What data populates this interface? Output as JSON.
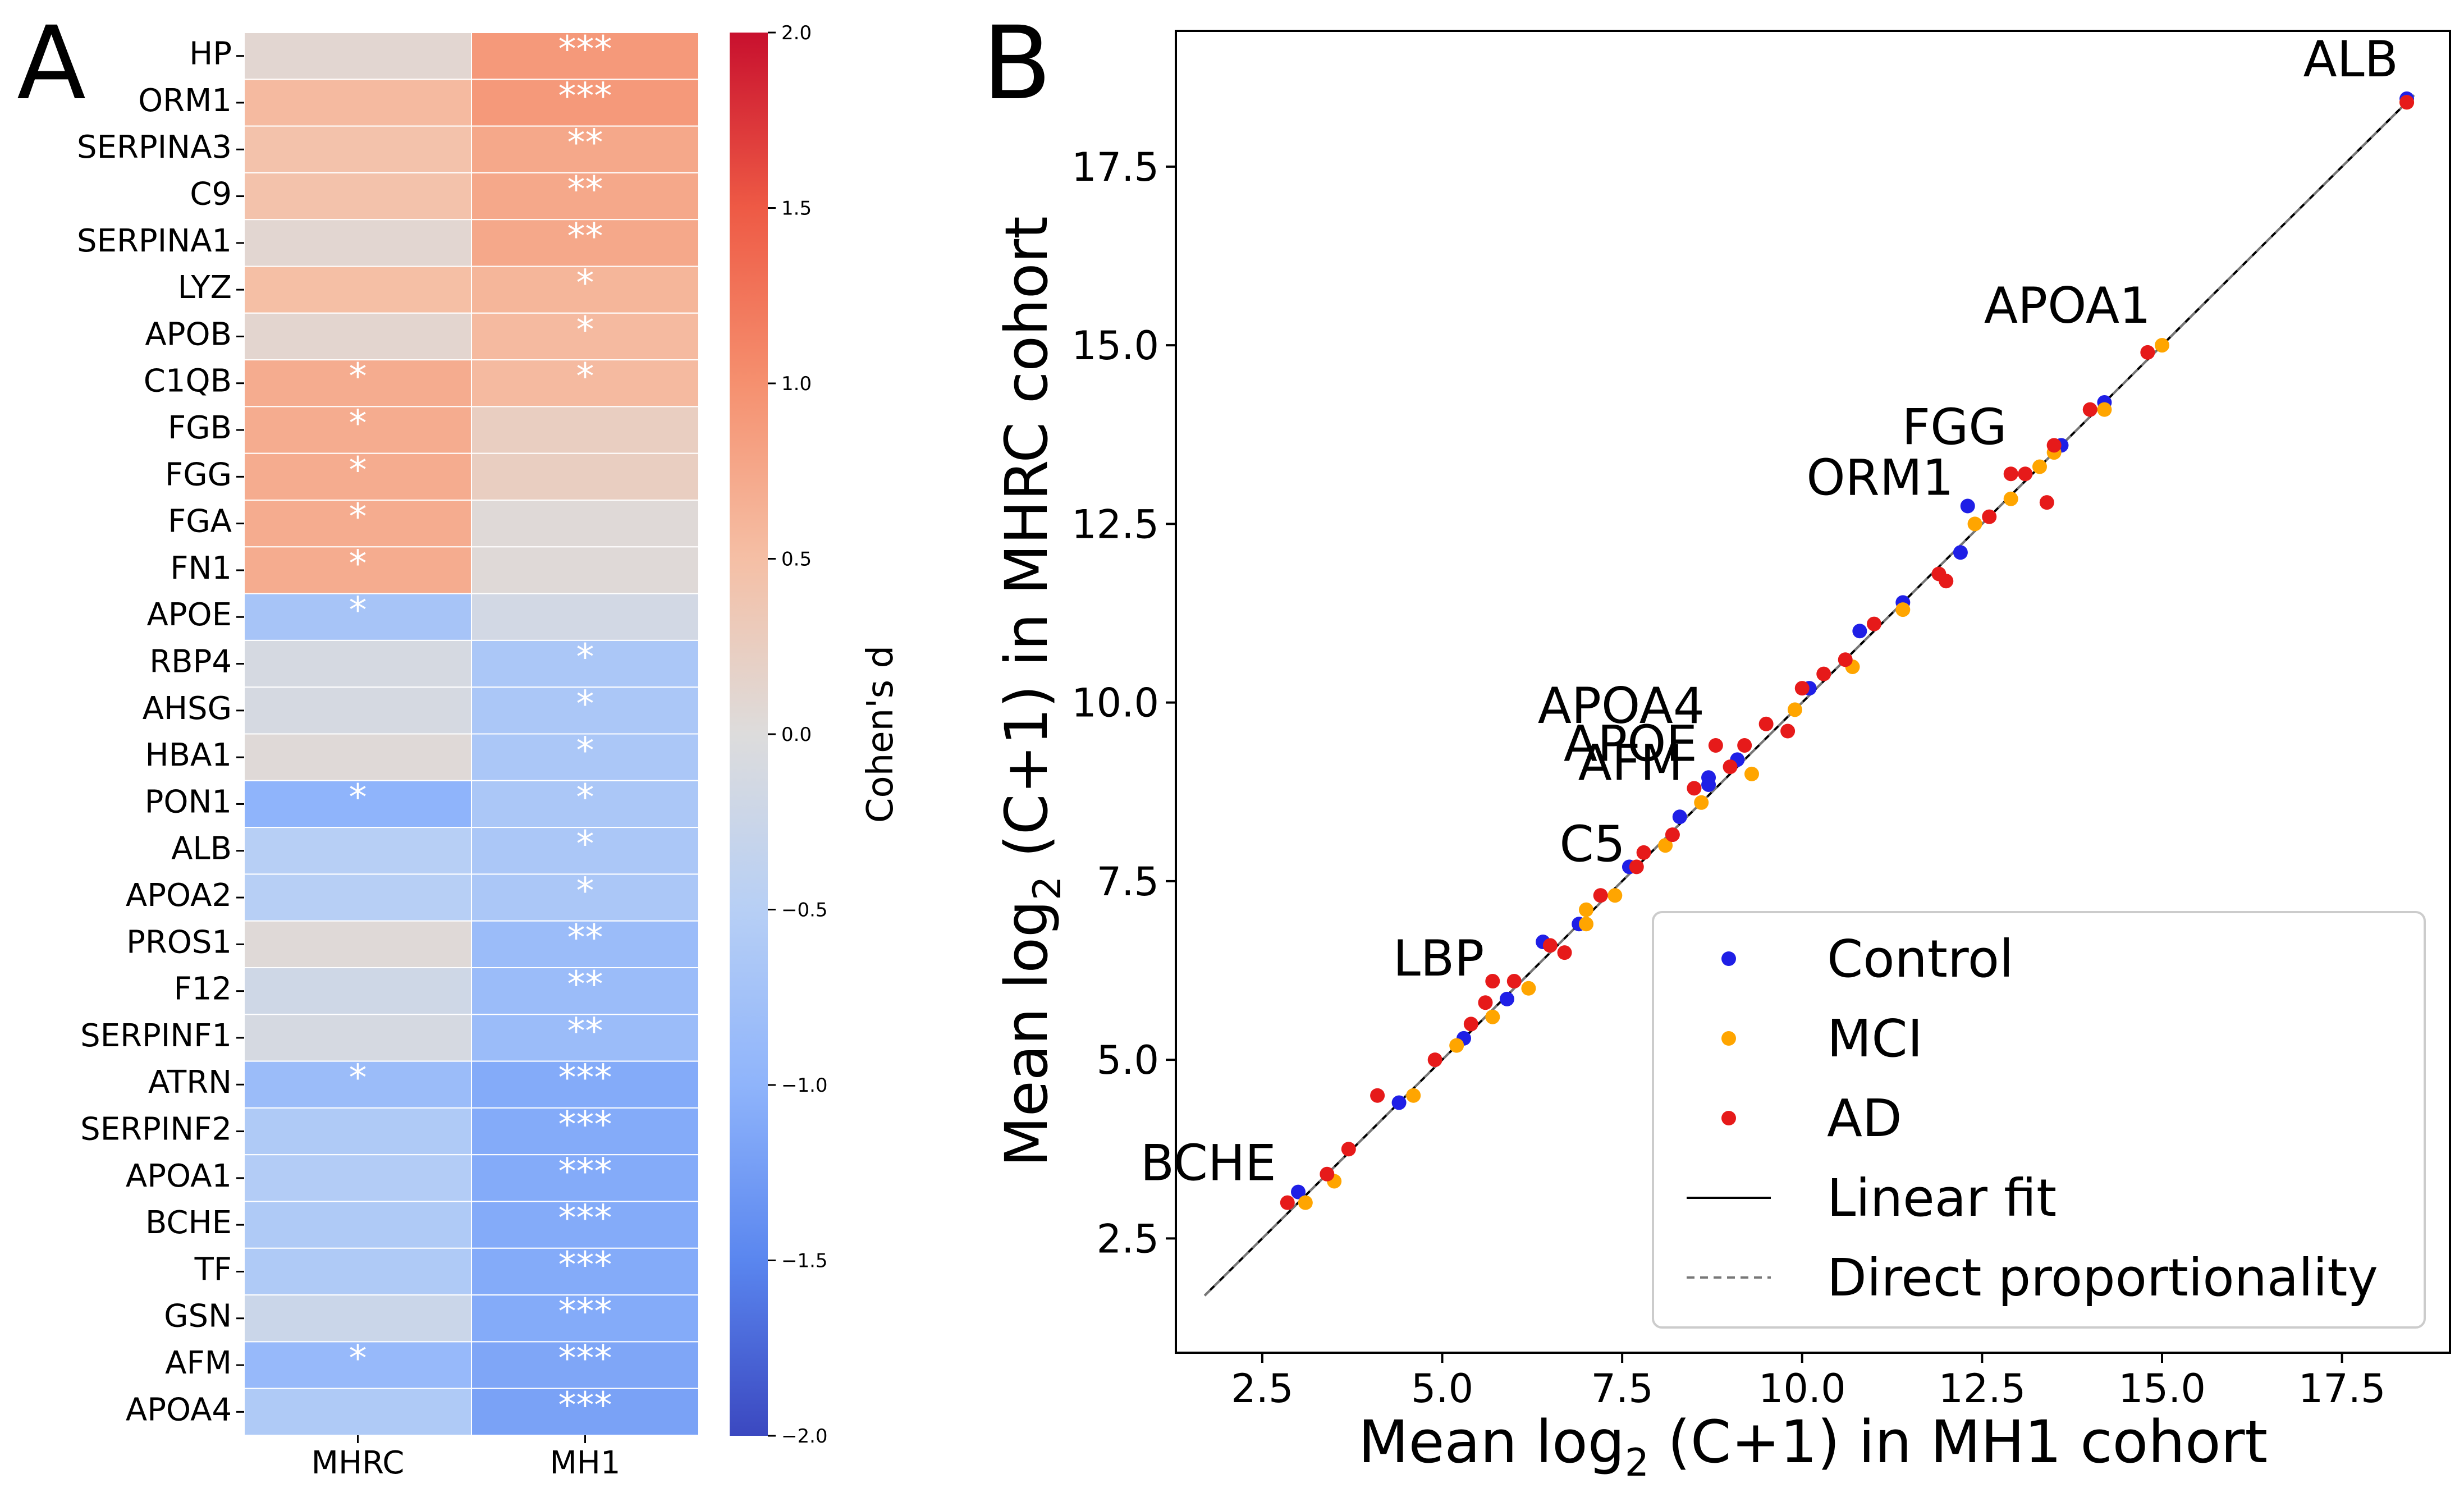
{
  "panel_a": {
    "panel_label": "A",
    "chart_data": {
      "type": "heatmap",
      "rows": [
        "HP",
        "ORM1",
        "SERPINA3",
        "C9",
        "SERPINA1",
        "LYZ",
        "APOB",
        "C1QB",
        "FGB",
        "FGG",
        "FGA",
        "FN1",
        "APOE",
        "RBP4",
        "AHSG",
        "HBA1",
        "PON1",
        "ALB",
        "APOA2",
        "PROS1",
        "F12",
        "SERPINF1",
        "ATRN",
        "SERPINF2",
        "APOA1",
        "BCHE",
        "TF",
        "GSN",
        "AFM",
        "APOA4"
      ],
      "columns": [
        "MHRC",
        "MH1"
      ],
      "values": [
        [
          0.1,
          0.9
        ],
        [
          0.55,
          0.9
        ],
        [
          0.45,
          0.75
        ],
        [
          0.45,
          0.75
        ],
        [
          0.1,
          0.75
        ],
        [
          0.5,
          0.6
        ],
        [
          0.12,
          0.55
        ],
        [
          0.7,
          0.55
        ],
        [
          0.7,
          0.25
        ],
        [
          0.7,
          0.25
        ],
        [
          0.7,
          0.05
        ],
        [
          0.7,
          0.05
        ],
        [
          -0.7,
          -0.15
        ],
        [
          -0.1,
          -0.65
        ],
        [
          -0.1,
          -0.65
        ],
        [
          0.05,
          -0.65
        ],
        [
          -1.0,
          -0.65
        ],
        [
          -0.5,
          -0.65
        ],
        [
          -0.5,
          -0.65
        ],
        [
          0.05,
          -0.85
        ],
        [
          -0.2,
          -0.85
        ],
        [
          -0.1,
          -0.85
        ],
        [
          -0.85,
          -1.1
        ],
        [
          -0.6,
          -1.1
        ],
        [
          -0.55,
          -1.1
        ],
        [
          -0.6,
          -1.1
        ],
        [
          -0.6,
          -1.1
        ],
        [
          -0.25,
          -1.1
        ],
        [
          -0.9,
          -1.15
        ],
        [
          -0.6,
          -1.2
        ]
      ],
      "significance": [
        [
          "",
          "***"
        ],
        [
          "",
          "***"
        ],
        [
          "",
          "**"
        ],
        [
          "",
          "**"
        ],
        [
          "",
          "**"
        ],
        [
          "",
          "*"
        ],
        [
          "",
          "*"
        ],
        [
          "*",
          "*"
        ],
        [
          "*",
          ""
        ],
        [
          "*",
          ""
        ],
        [
          "*",
          ""
        ],
        [
          "*",
          ""
        ],
        [
          "*",
          ""
        ],
        [
          "",
          "*"
        ],
        [
          "",
          "*"
        ],
        [
          "",
          "*"
        ],
        [
          "*",
          "*"
        ],
        [
          "",
          "*"
        ],
        [
          "",
          "*"
        ],
        [
          "",
          "**"
        ],
        [
          "",
          "**"
        ],
        [
          "",
          "**"
        ],
        [
          "*",
          "***"
        ],
        [
          "",
          "***"
        ],
        [
          "",
          "***"
        ],
        [
          "",
          "***"
        ],
        [
          "",
          "***"
        ],
        [
          "",
          "***"
        ],
        [
          "*",
          "***"
        ],
        [
          "",
          "***"
        ]
      ],
      "colorbar": {
        "label": "Cohen's d",
        "range": [
          -2.0,
          2.0
        ],
        "ticks": [
          "2.0",
          "1.5",
          "1.0",
          "0.5",
          "0.0",
          "−0.5",
          "−1.0",
          "−1.5",
          "−2.0"
        ],
        "tick_values": [
          2.0,
          1.5,
          1.0,
          0.5,
          0.0,
          -0.5,
          -1.0,
          -1.5,
          -2.0
        ],
        "colormap": "coolwarm"
      }
    }
  },
  "panel_b": {
    "panel_label": "B",
    "chart_data": {
      "type": "scatter",
      "xlabel_main": "Mean log",
      "xlabel_sub": "2",
      "xlabel_rest": " (C+1) in MH1 cohort",
      "ylabel_main": "Mean log",
      "ylabel_sub": "2",
      "ylabel_rest": " (C+1) in MHRC cohort",
      "xlim": [
        1.3,
        19.0
      ],
      "ylim": [
        0.9,
        19.4
      ],
      "xticks": [
        "2.5",
        "5.0",
        "7.5",
        "10.0",
        "12.5",
        "15.0",
        "17.5"
      ],
      "xtick_values": [
        2.5,
        5.0,
        7.5,
        10.0,
        12.5,
        15.0,
        17.5
      ],
      "yticks": [
        "2.5",
        "5.0",
        "7.5",
        "10.0",
        "12.5",
        "15.0",
        "17.5"
      ],
      "ytick_values": [
        2.5,
        5.0,
        7.5,
        10.0,
        12.5,
        15.0,
        17.5
      ],
      "series": [
        {
          "name": "Control",
          "color": "#1f1fe6",
          "points": [
            [
              3.0,
              3.15
            ],
            [
              4.4,
              4.4
            ],
            [
              5.3,
              5.3
            ],
            [
              5.9,
              5.85
            ],
            [
              6.4,
              6.65
            ],
            [
              6.9,
              6.9
            ],
            [
              7.6,
              7.7
            ],
            [
              8.3,
              8.4
            ],
            [
              8.7,
              8.95
            ],
            [
              9.1,
              9.2
            ],
            [
              10.1,
              10.2
            ],
            [
              10.8,
              11.0
            ],
            [
              11.4,
              11.4
            ],
            [
              12.2,
              12.1
            ],
            [
              13.6,
              13.6
            ],
            [
              14.2,
              14.2
            ],
            [
              18.4,
              18.45
            ],
            [
              12.3,
              12.75
            ],
            [
              8.7,
              8.85
            ]
          ]
        },
        {
          "name": "MCI",
          "color": "#ffa500",
          "points": [
            [
              3.1,
              3.0
            ],
            [
              3.5,
              3.3
            ],
            [
              4.6,
              4.5
            ],
            [
              5.2,
              5.2
            ],
            [
              5.7,
              5.6
            ],
            [
              6.2,
              6.0
            ],
            [
              7.0,
              6.9
            ],
            [
              7.4,
              7.3
            ],
            [
              8.1,
              8.0
            ],
            [
              8.6,
              8.6
            ],
            [
              9.3,
              9.0
            ],
            [
              9.9,
              9.9
            ],
            [
              10.7,
              10.5
            ],
            [
              11.4,
              11.3
            ],
            [
              12.4,
              12.5
            ],
            [
              12.9,
              12.85
            ],
            [
              13.5,
              13.5
            ],
            [
              14.2,
              14.1
            ],
            [
              15.0,
              15.0
            ],
            [
              13.3,
              13.3
            ],
            [
              18.4,
              18.4
            ],
            [
              7.0,
              7.1
            ]
          ]
        },
        {
          "name": "AD",
          "color": "#e61a1a",
          "points": [
            [
              2.85,
              3.0
            ],
            [
              3.4,
              3.4
            ],
            [
              3.7,
              3.75
            ],
            [
              4.1,
              4.5
            ],
            [
              4.9,
              5.0
            ],
            [
              5.4,
              5.5
            ],
            [
              5.6,
              5.8
            ],
            [
              5.7,
              6.1
            ],
            [
              6.0,
              6.1
            ],
            [
              6.5,
              6.6
            ],
            [
              6.7,
              6.5
            ],
            [
              7.2,
              7.3
            ],
            [
              7.7,
              7.7
            ],
            [
              7.8,
              7.9
            ],
            [
              8.2,
              8.15
            ],
            [
              8.5,
              8.8
            ],
            [
              8.8,
              9.4
            ],
            [
              9.2,
              9.4
            ],
            [
              9.5,
              9.7
            ],
            [
              9.8,
              9.6
            ],
            [
              10.3,
              10.4
            ],
            [
              10.6,
              10.6
            ],
            [
              11.0,
              11.1
            ],
            [
              11.9,
              11.8
            ],
            [
              12.0,
              11.7
            ],
            [
              12.6,
              12.6
            ],
            [
              12.9,
              13.2
            ],
            [
              13.1,
              13.2
            ],
            [
              13.4,
              12.8
            ],
            [
              13.5,
              13.6
            ],
            [
              14.0,
              14.1
            ],
            [
              14.8,
              14.9
            ],
            [
              18.4,
              18.4
            ],
            [
              10.0,
              10.2
            ],
            [
              9.0,
              9.1
            ]
          ]
        }
      ],
      "linear_fit": {
        "x": [
          1.7,
          18.5
        ],
        "y": [
          1.7,
          18.5
        ]
      },
      "identity": {
        "x": [
          1.7,
          18.5
        ],
        "y": [
          1.7,
          18.5
        ]
      },
      "annotations": [
        {
          "text": "ALB",
          "x": 18.4,
          "y": 18.45
        },
        {
          "text": "APOA1",
          "x": 15.0,
          "y": 15.0
        },
        {
          "text": "FGG",
          "x": 13.0,
          "y": 13.3
        },
        {
          "text": "ORM1",
          "x": 12.3,
          "y": 12.75
        },
        {
          "text": "APOA4",
          "x": 8.8,
          "y": 9.4
        },
        {
          "text": "APOE",
          "x": 8.7,
          "y": 8.95
        },
        {
          "text": "AFM",
          "x": 8.5,
          "y": 8.8
        },
        {
          "text": "C5",
          "x": 7.7,
          "y": 7.7
        },
        {
          "text": "LBP",
          "x": 5.7,
          "y": 6.1
        },
        {
          "text": "BCHE",
          "x": 2.85,
          "y": 3.0
        }
      ],
      "legend": {
        "position": "bottom-right",
        "entries": [
          "Control",
          "MCI",
          "AD",
          "Linear fit",
          "Direct proportionality"
        ]
      }
    }
  }
}
